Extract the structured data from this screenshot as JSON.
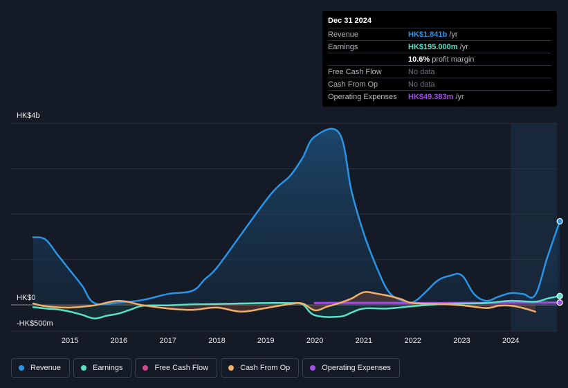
{
  "colors": {
    "revenue": "#2a94e6",
    "earnings": "#5ce0c9",
    "free_cash_flow": "#d2478a",
    "cash_from_op": "#f0b06a",
    "operating_expenses": "#a24de6",
    "background": "#151b26"
  },
  "tooltip": {
    "date": "Dec 31 2024",
    "rows": [
      {
        "key": "Revenue",
        "value": "HK$1.841b",
        "unit": " /yr",
        "color": "#2a94e6"
      },
      {
        "key": "Earnings",
        "value": "HK$195.000m",
        "unit": " /yr",
        "color": "#5ce0c9"
      },
      {
        "key": "",
        "value": "10.6%",
        "unit": " profit margin",
        "color": "#ffffff"
      },
      {
        "key": "Free Cash Flow",
        "value": "No data",
        "unit": "",
        "color": "#6e7280"
      },
      {
        "key": "Cash From Op",
        "value": "No data",
        "unit": "",
        "color": "#6e7280"
      },
      {
        "key": "Operating Expenses",
        "value": "HK$49.383m",
        "unit": " /yr",
        "color": "#a24de6"
      }
    ]
  },
  "legend": [
    {
      "label": "Revenue",
      "color": "#2a94e6"
    },
    {
      "label": "Earnings",
      "color": "#5ce0c9"
    },
    {
      "label": "Free Cash Flow",
      "color": "#d2478a"
    },
    {
      "label": "Cash From Op",
      "color": "#f0b06a"
    },
    {
      "label": "Operating Expenses",
      "color": "#a24de6"
    }
  ],
  "chart_data": {
    "type": "area",
    "y_axis_labels": [
      "HK$4b",
      "HK$0",
      "-HK$500m"
    ],
    "x_tick_labels": [
      "2015",
      "2016",
      "2017",
      "2018",
      "2019",
      "2020",
      "2021",
      "2022",
      "2023",
      "2024"
    ],
    "ylim": [
      -500,
      4000
    ],
    "y_unit": "HK$ millions",
    "x_range": [
      2014.25,
      2025.0
    ],
    "forecast_shade_from": 2024.0,
    "grid": true,
    "legend_position": "bottom",
    "series": [
      {
        "name": "Revenue",
        "x": [
          2014.25,
          2014.5,
          2014.75,
          2015.0,
          2015.25,
          2015.5,
          2016.0,
          2016.5,
          2017.0,
          2017.5,
          2017.75,
          2018.0,
          2018.5,
          2019.0,
          2019.25,
          2019.5,
          2019.75,
          2020.0,
          2020.5,
          2020.75,
          2021.0,
          2021.25,
          2021.5,
          2021.75,
          2022.0,
          2022.25,
          2022.5,
          2022.75,
          2023.0,
          2023.25,
          2023.5,
          2023.75,
          2024.0,
          2024.25,
          2024.5,
          2024.75,
          2025.0
        ],
        "values": [
          1490,
          1440,
          1100,
          760,
          420,
          40,
          50,
          110,
          240,
          310,
          560,
          820,
          1560,
          2300,
          2610,
          2850,
          3240,
          3710,
          3780,
          2500,
          1570,
          860,
          300,
          110,
          60,
          270,
          530,
          640,
          650,
          240,
          90,
          180,
          260,
          240,
          220,
          1060,
          1841
        ]
      },
      {
        "name": "Earnings",
        "x": [
          2014.25,
          2014.5,
          2014.75,
          2015.0,
          2015.25,
          2015.5,
          2015.75,
          2016.0,
          2016.25,
          2016.5,
          2017.0,
          2017.5,
          2018.0,
          2018.5,
          2019.0,
          2019.5,
          2019.75,
          2020.0,
          2020.5,
          2020.75,
          2021.0,
          2021.5,
          2022.0,
          2022.5,
          2023.0,
          2023.5,
          2024.0,
          2024.5,
          2024.75,
          2025.0
        ],
        "values": [
          -50,
          -80,
          -100,
          -150,
          -220,
          -300,
          -240,
          -190,
          -100,
          -20,
          -10,
          10,
          20,
          30,
          40,
          40,
          10,
          -230,
          -260,
          -170,
          -80,
          -80,
          -30,
          10,
          30,
          40,
          90,
          70,
          140,
          195
        ]
      },
      {
        "name": "Free Cash Flow",
        "x": [],
        "values": []
      },
      {
        "name": "Cash From Op",
        "x": [
          2014.25,
          2014.5,
          2015.0,
          2015.5,
          2016.0,
          2016.5,
          2017.0,
          2017.5,
          2018.0,
          2018.5,
          2019.0,
          2019.5,
          2019.75,
          2020.0,
          2020.25,
          2020.5,
          2020.75,
          2021.0,
          2021.25,
          2021.5,
          2021.75,
          2022.0,
          2022.5,
          2023.0,
          2023.5,
          2023.75,
          2024.0,
          2024.25,
          2024.5
        ],
        "values": [
          30,
          -30,
          -60,
          -10,
          90,
          -10,
          -80,
          -110,
          -60,
          -150,
          -70,
          20,
          30,
          -120,
          -40,
          40,
          140,
          280,
          250,
          200,
          130,
          40,
          20,
          -10,
          -70,
          -20,
          -20,
          -70,
          -150
        ]
      },
      {
        "name": "Operating Expenses",
        "x": [
          2020.0,
          2020.5,
          2021.0,
          2021.5,
          2022.0,
          2022.5,
          2023.0,
          2023.5,
          2024.0,
          2024.5,
          2025.0
        ],
        "values": [
          40,
          45,
          45,
          45,
          40,
          40,
          45,
          45,
          48,
          49,
          49.383
        ]
      }
    ]
  }
}
